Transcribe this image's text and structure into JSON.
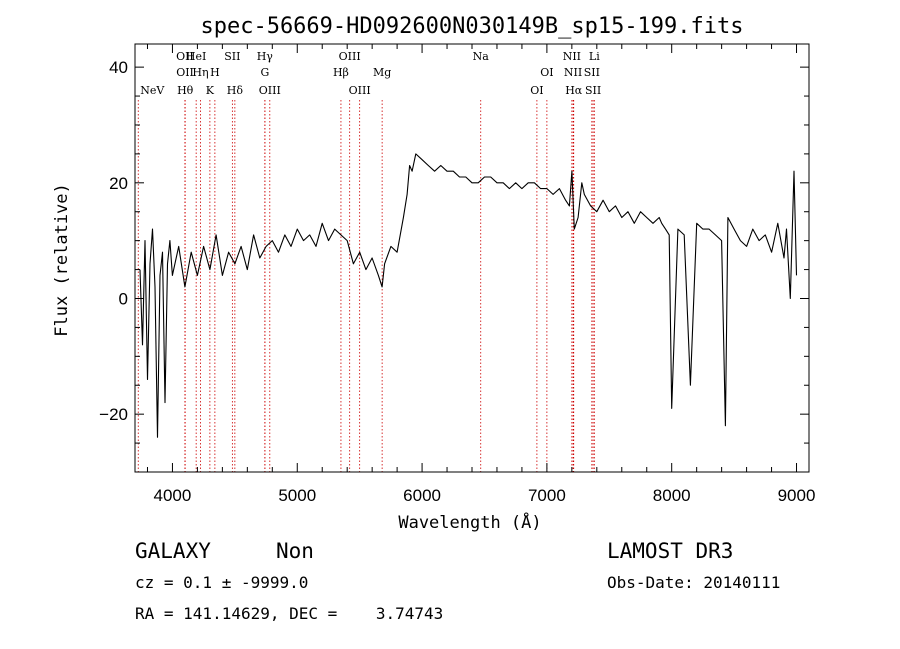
{
  "chart_data": {
    "type": "line",
    "title": "spec-56669-HD092600N030149B_sp15-199.fits",
    "xlabel": "Wavelength (Å)",
    "ylabel": "Flux (relative)",
    "xlim": [
      3700,
      9100
    ],
    "ylim": [
      -30,
      44
    ],
    "xticks": [
      "4000",
      "5000",
      "6000",
      "7000",
      "8000",
      "9000"
    ],
    "yticks": [
      "−20",
      "0",
      "20",
      "40"
    ],
    "line_color": "#000000",
    "marker_color": "#cc0000",
    "series": [
      {
        "x": [
          3740,
          3760,
          3780,
          3800,
          3820,
          3840,
          3860,
          3880,
          3900,
          3920,
          3940,
          3960,
          3980,
          4000,
          4050,
          4100,
          4150,
          4200,
          4250,
          4300,
          4350,
          4400,
          4450,
          4500,
          4550,
          4600,
          4650,
          4700,
          4750,
          4800,
          4850,
          4900,
          4950,
          5000,
          5050,
          5100,
          5150,
          5200,
          5250,
          5300,
          5350,
          5400,
          5450,
          5500,
          5550,
          5600,
          5650,
          5680,
          5700,
          5750,
          5800,
          5850,
          5880,
          5900,
          5920,
          5950,
          6000,
          6050,
          6100,
          6150,
          6200,
          6250,
          6300,
          6350,
          6400,
          6450,
          6500,
          6550,
          6600,
          6650,
          6700,
          6750,
          6800,
          6850,
          6900,
          6950,
          7000,
          7050,
          7100,
          7150,
          7180,
          7200,
          7220,
          7250,
          7280,
          7300,
          7350,
          7400,
          7450,
          7500,
          7550,
          7600,
          7650,
          7700,
          7750,
          7800,
          7850,
          7900,
          7920,
          7950,
          7980,
          8000,
          8050,
          8100,
          8150,
          8200,
          8250,
          8300,
          8350,
          8400,
          8430,
          8450,
          8500,
          8550,
          8600,
          8650,
          8700,
          8750,
          8800,
          8850,
          8900,
          8920,
          8950,
          8980,
          9000
        ],
        "y": [
          5,
          -8,
          10,
          -14,
          6,
          12,
          2,
          -24,
          4,
          8,
          -18,
          6,
          10,
          4,
          9,
          2,
          8,
          4,
          9,
          5,
          11,
          4,
          8,
          6,
          9,
          5,
          11,
          7,
          9,
          10,
          8,
          11,
          9,
          12,
          10,
          11,
          9,
          13,
          10,
          12,
          11,
          10,
          6,
          8,
          5,
          7,
          4,
          2,
          6,
          9,
          8,
          14,
          18,
          23,
          22,
          25,
          24,
          23,
          22,
          23,
          22,
          22,
          21,
          21,
          20,
          20,
          21,
          21,
          20,
          20,
          19,
          20,
          19,
          20,
          20,
          19,
          19,
          18,
          19,
          17,
          16,
          22,
          12,
          14,
          20,
          18,
          16,
          15,
          17,
          15,
          16,
          14,
          15,
          13,
          15,
          14,
          13,
          14,
          13,
          12,
          11,
          -19,
          12,
          11,
          -15,
          13,
          12,
          12,
          11,
          10,
          -22,
          14,
          12,
          10,
          9,
          12,
          10,
          11,
          8,
          13,
          7,
          12,
          0,
          22,
          4
        ]
      }
    ],
    "emission_lines": [
      {
        "name": "NeV",
        "x": 3726,
        "row": 3
      },
      {
        "name": "OII",
        "x": 4100,
        "row": 0
      },
      {
        "name": "OII",
        "x": 4101,
        "row": 1
      },
      {
        "name": "Hθ",
        "x": 4102,
        "row": 2
      },
      {
        "name": "Hη",
        "x": 4225,
        "row": 1
      },
      {
        "name": "HeI",
        "x": 4190,
        "row": 0
      },
      {
        "name": "H",
        "x": 4340,
        "row": 1
      },
      {
        "name": "K",
        "x": 4300,
        "row": 2
      },
      {
        "name": "SII",
        "x": 4480,
        "row": 0
      },
      {
        "name": "Hδ",
        "x": 4500,
        "row": 2
      },
      {
        "name": "Hγ",
        "x": 4740,
        "row": 0
      },
      {
        "name": "G",
        "x": 4741,
        "row": 1
      },
      {
        "name": "OIII",
        "x": 4780,
        "row": 2
      },
      {
        "name": "OIII",
        "x": 5420,
        "row": 0
      },
      {
        "name": "Hβ",
        "x": 5350,
        "row": 1
      },
      {
        "name": "OIII",
        "x": 5500,
        "row": 2
      },
      {
        "name": "Mg",
        "x": 5680,
        "row": 1
      },
      {
        "name": "Na",
        "x": 6470,
        "row": 0
      },
      {
        "name": "OI",
        "x": 7000,
        "row": 1
      },
      {
        "name": "OI",
        "x": 6920,
        "row": 2
      },
      {
        "name": "NII",
        "x": 7200,
        "row": 0
      },
      {
        "name": "NII",
        "x": 7210,
        "row": 1
      },
      {
        "name": "Hα",
        "x": 7215,
        "row": 2
      },
      {
        "name": "SII",
        "x": 7360,
        "row": 1
      },
      {
        "name": "SII",
        "x": 7370,
        "row": 2
      },
      {
        "name": "Li",
        "x": 7380,
        "row": 0
      }
    ]
  },
  "info": {
    "class_label": "GALAXY",
    "subclass": "Non",
    "survey": "LAMOST DR3",
    "cz_line": "cz = 0.1 ± -9999.0",
    "obs_date": "Obs-Date: 20140111",
    "radec_line": "RA = 141.14629, DEC =    3.74743"
  }
}
